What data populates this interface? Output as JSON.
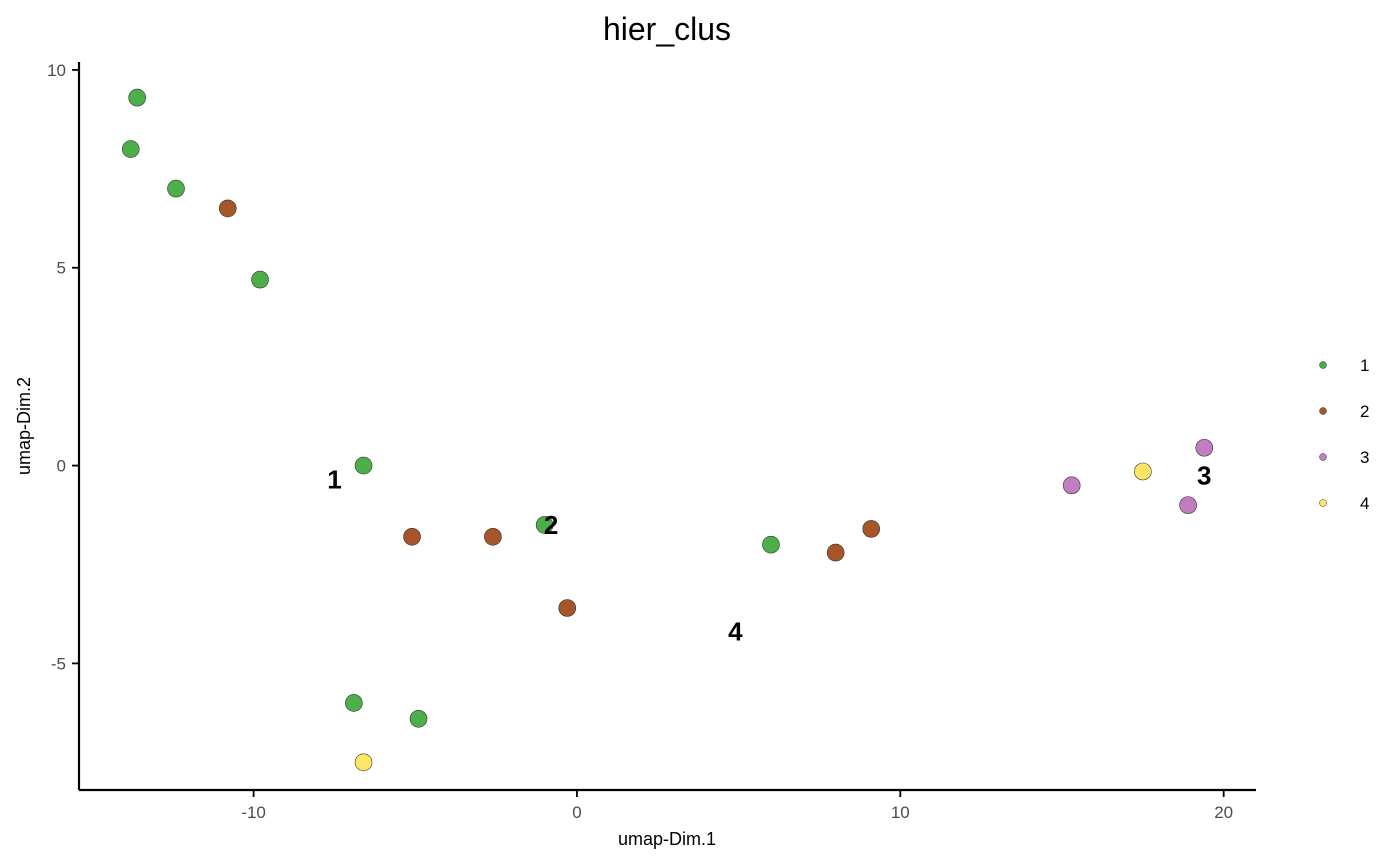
{
  "chart_data": {
    "type": "scatter",
    "title": "hier_clus",
    "xlabel": "umap-Dim.1",
    "ylabel": "umap-Dim.2",
    "xlim": [
      -15.4,
      21.0
    ],
    "ylim": [
      -8.2,
      10.2
    ],
    "x_ticks": [
      -10,
      0,
      10,
      20
    ],
    "y_ticks": [
      -5,
      0,
      5,
      10
    ],
    "x_tick_labels": [
      "-10",
      "0",
      "10",
      "20"
    ],
    "y_tick_labels": [
      "-5",
      "0",
      "5",
      "10"
    ],
    "grid": false,
    "legend_position": "right",
    "series": [
      {
        "name": "1",
        "color": "#4DAF4A",
        "points": [
          {
            "x": -13.6,
            "y": 9.3
          },
          {
            "x": -13.8,
            "y": 8.0
          },
          {
            "x": -12.4,
            "y": 7.0
          },
          {
            "x": -9.8,
            "y": 4.7
          },
          {
            "x": -6.6,
            "y": 0.0
          },
          {
            "x": -1.0,
            "y": -1.5
          },
          {
            "x": 6.0,
            "y": -2.0
          },
          {
            "x": -6.9,
            "y": -6.0
          },
          {
            "x": -4.9,
            "y": -6.4
          }
        ]
      },
      {
        "name": "2",
        "color": "#A65628",
        "points": [
          {
            "x": -10.8,
            "y": 6.5
          },
          {
            "x": -5.1,
            "y": -1.8
          },
          {
            "x": -2.6,
            "y": -1.8
          },
          {
            "x": -0.3,
            "y": -3.6
          },
          {
            "x": 8.0,
            "y": -2.2
          },
          {
            "x": 9.1,
            "y": -1.6
          }
        ]
      },
      {
        "name": "3",
        "color": "#C17DC0",
        "points": [
          {
            "x": 15.3,
            "y": -0.5
          },
          {
            "x": 18.9,
            "y": -1.0
          },
          {
            "x": 19.4,
            "y": 0.45
          }
        ]
      },
      {
        "name": "4",
        "color": "#FFE666",
        "points": [
          {
            "x": 17.5,
            "y": -0.15
          },
          {
            "x": -6.6,
            "y": -7.5
          }
        ]
      }
    ],
    "cluster_labels": [
      {
        "text": "1",
        "x": -7.5,
        "y": -0.35
      },
      {
        "text": "2",
        "x": -0.8,
        "y": -1.5
      },
      {
        "text": "3",
        "x": 19.4,
        "y": -0.25
      },
      {
        "text": "4",
        "x": 4.9,
        "y": -4.2
      }
    ],
    "legend": [
      {
        "label": "1",
        "color": "#4DAF4A"
      },
      {
        "label": "2",
        "color": "#A65628"
      },
      {
        "label": "3",
        "color": "#C17DC0"
      },
      {
        "label": "4",
        "color": "#FFE666"
      }
    ]
  }
}
